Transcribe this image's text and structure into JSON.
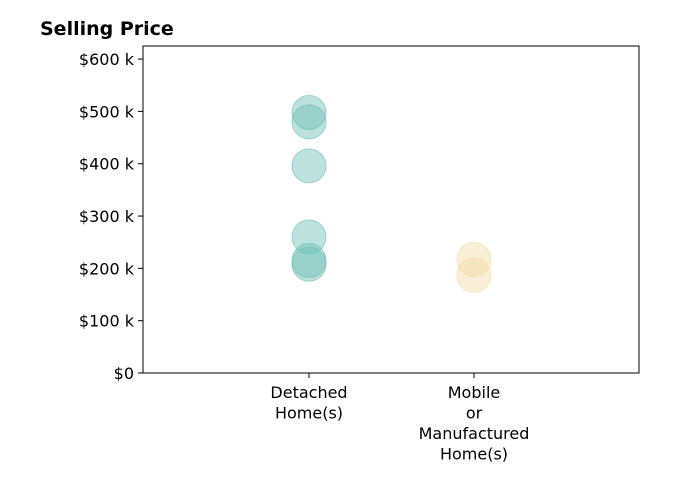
{
  "chart_data": {
    "type": "scatter",
    "title": "Selling Price",
    "xlabel": "",
    "ylabel": "",
    "ylim": [
      0,
      625000
    ],
    "y_ticks": [
      {
        "value": 0,
        "label": "$0"
      },
      {
        "value": 100000,
        "label": "$100 k"
      },
      {
        "value": 200000,
        "label": "$200 k"
      },
      {
        "value": 300000,
        "label": "$300 k"
      },
      {
        "value": 400000,
        "label": "$400 k"
      },
      {
        "value": 500000,
        "label": "$500 k"
      },
      {
        "value": 600000,
        "label": "$600 k"
      }
    ],
    "categories": [
      {
        "lines": [
          "Detached",
          "Home(s)"
        ]
      },
      {
        "lines": [
          "Mobile",
          "or",
          "Manufactured",
          "Home(s)"
        ]
      }
    ],
    "series": [
      {
        "category_index": 0,
        "color": "#6dbfb3",
        "values": [
          498000,
          480000,
          396000,
          260000,
          215000,
          208000
        ]
      },
      {
        "category_index": 1,
        "color": "#f2dca5",
        "values": [
          217000,
          187000
        ]
      }
    ],
    "grid": false,
    "legend": "none"
  }
}
